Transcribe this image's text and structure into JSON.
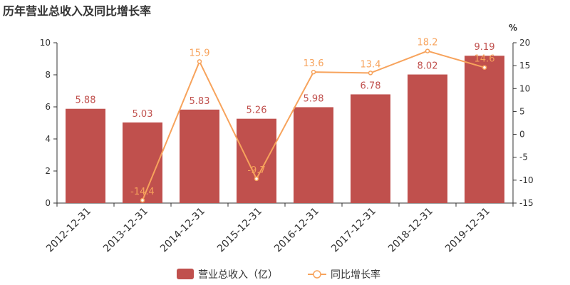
{
  "title": "历年营业总收入及同比增长率",
  "chart_data": {
    "type": "bar",
    "categories": [
      "2012-12-31",
      "2013-12-31",
      "2014-12-31",
      "2015-12-31",
      "2016-12-31",
      "2017-12-31",
      "2018-12-31",
      "2019-12-31"
    ],
    "series": [
      {
        "name": "营业总收入（亿）",
        "type": "bar",
        "axis": "left",
        "color": "#c0504d",
        "values": [
          5.88,
          5.03,
          5.83,
          5.26,
          5.98,
          6.78,
          8.02,
          9.19
        ]
      },
      {
        "name": "同比增长率",
        "type": "line",
        "axis": "right",
        "color": "#f7a35c",
        "values": [
          null,
          -14.4,
          15.9,
          -9.7,
          13.6,
          13.4,
          18.2,
          14.6
        ]
      }
    ],
    "y_left": {
      "min": 0,
      "max": 10,
      "ticks": [
        0,
        2,
        4,
        6,
        8,
        10
      ]
    },
    "y_right": {
      "min": -15,
      "max": 20,
      "ticks": [
        -15,
        -10,
        -5,
        0,
        5,
        10,
        15,
        20
      ],
      "unit": "%"
    },
    "legend": {
      "position": "bottom-center"
    },
    "grid": false
  }
}
